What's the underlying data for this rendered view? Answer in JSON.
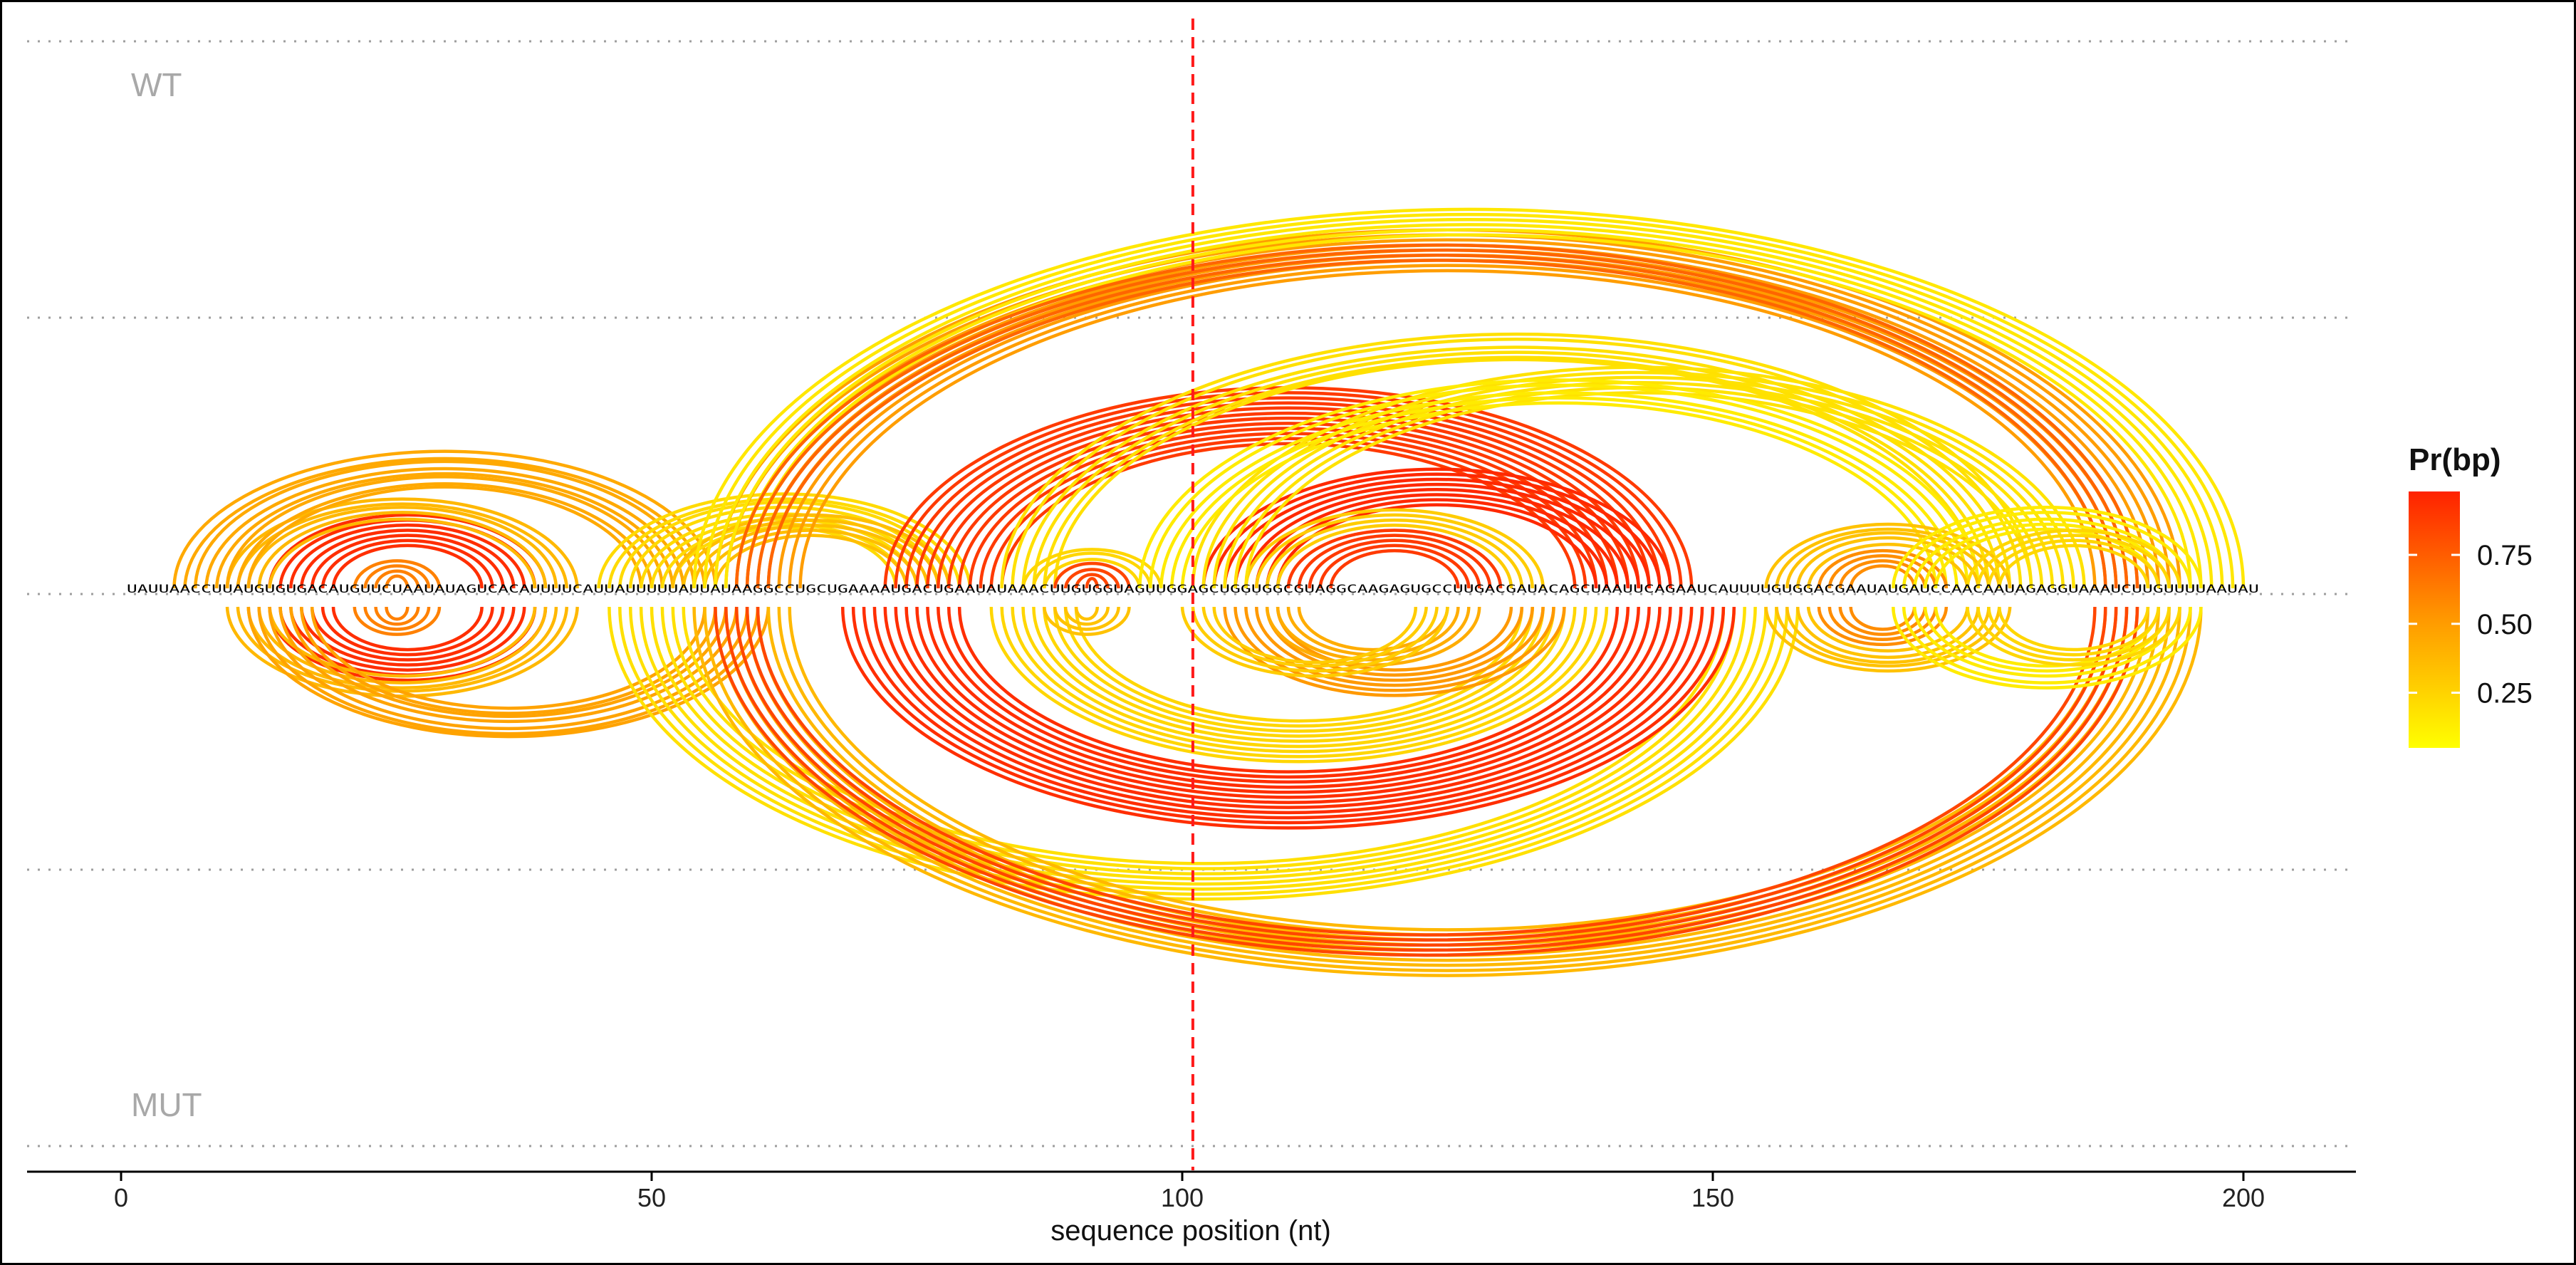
{
  "chart_data": {
    "type": "arc",
    "xlabel": "sequence position (nt)",
    "xlim": [
      -9,
      211
    ],
    "xticks": [
      0,
      50,
      100,
      150,
      200
    ],
    "tracks": [
      "WT",
      "MUT"
    ],
    "mutation_position": 101,
    "sequence": "UAUUAACCUUAUGUGUGACAUGUUCUAAUAUAGUCACAUUUUCAUUAUUUUUAUUAUAAGGCCUGCUGAAAAUGACUGAAUAUAAACUUGUGGUAGUUGGAGCUGGUGGCGUAGGCAAGAGUGCCUUGACGAUACAGCUAAUUCAGAAUCAUUUUGUGGACGAAUAUGAUCCAACAAUAGAGGUAAAUCUUGUUUUAAUAU",
    "sequence_start": 1,
    "colorbar": {
      "title": "Pr(bp)",
      "ticks": [
        0.25,
        0.5,
        0.75
      ],
      "tick_labels": [
        "0.25",
        "0.50",
        "0.75"
      ],
      "low_color": "#ffff00",
      "mid_color": "#ff9900",
      "high_color": "#ff2200"
    },
    "helices": {
      "WT": [
        {
          "i": 14,
          "j": 40,
          "count": 7,
          "prob": 0.95
        },
        {
          "i": 22,
          "j": 30,
          "count": 4,
          "prob": 0.6
        },
        {
          "i": 10,
          "j": 43,
          "count": 5,
          "prob": 0.35
        },
        {
          "i": 5,
          "j": 56,
          "count": 8,
          "prob": 0.42
        },
        {
          "i": 45,
          "j": 80,
          "count": 8,
          "prob": 0.18
        },
        {
          "i": 52,
          "j": 78,
          "count": 5,
          "prob": 0.32
        },
        {
          "i": 56,
          "j": 194,
          "count": 9,
          "prob": 0.48
        },
        {
          "i": 54,
          "j": 200,
          "count": 6,
          "prob": 0.12
        },
        {
          "i": 58,
          "j": 190,
          "count": 4,
          "prob": 0.72
        },
        {
          "i": 72,
          "j": 148,
          "count": 12,
          "prob": 0.9
        },
        {
          "i": 83,
          "j": 180,
          "count": 6,
          "prob": 0.15
        },
        {
          "i": 88,
          "j": 95,
          "count": 4,
          "prob": 0.85
        },
        {
          "i": 85,
          "j": 98,
          "count": 3,
          "prob": 0.2
        },
        {
          "i": 102,
          "j": 146,
          "count": 8,
          "prob": 0.97
        },
        {
          "i": 110,
          "j": 130,
          "count": 5,
          "prob": 0.9
        },
        {
          "i": 106,
          "j": 134,
          "count": 4,
          "prob": 0.25
        },
        {
          "i": 101,
          "j": 185,
          "count": 6,
          "prob": 0.14
        },
        {
          "i": 96,
          "j": 175,
          "count": 5,
          "prob": 0.1
        },
        {
          "i": 155,
          "j": 178,
          "count": 5,
          "prob": 0.3
        },
        {
          "i": 160,
          "j": 172,
          "count": 4,
          "prob": 0.55
        },
        {
          "i": 167,
          "j": 196,
          "count": 5,
          "prob": 0.1
        },
        {
          "i": 174,
          "j": 194,
          "count": 4,
          "prob": 0.2
        }
      ],
      "MUT": [
        {
          "i": 14,
          "j": 40,
          "count": 7,
          "prob": 0.95
        },
        {
          "i": 22,
          "j": 30,
          "count": 4,
          "prob": 0.6
        },
        {
          "i": 10,
          "j": 43,
          "count": 5,
          "prob": 0.35
        },
        {
          "i": 12,
          "j": 61,
          "count": 7,
          "prob": 0.45
        },
        {
          "i": 46,
          "j": 158,
          "count": 8,
          "prob": 0.15
        },
        {
          "i": 54,
          "j": 196,
          "count": 10,
          "prob": 0.35
        },
        {
          "i": 56,
          "j": 190,
          "count": 5,
          "prob": 0.85
        },
        {
          "i": 68,
          "j": 152,
          "count": 12,
          "prob": 0.95
        },
        {
          "i": 82,
          "j": 140,
          "count": 9,
          "prob": 0.2
        },
        {
          "i": 87,
          "j": 95,
          "count": 4,
          "prob": 0.3
        },
        {
          "i": 104,
          "j": 136,
          "count": 6,
          "prob": 0.5
        },
        {
          "i": 108,
          "j": 128,
          "count": 4,
          "prob": 0.4
        },
        {
          "i": 100,
          "j": 125,
          "count": 4,
          "prob": 0.25
        },
        {
          "i": 155,
          "j": 178,
          "count": 5,
          "prob": 0.3
        },
        {
          "i": 160,
          "j": 172,
          "count": 4,
          "prob": 0.55
        },
        {
          "i": 167,
          "j": 196,
          "count": 5,
          "prob": 0.1
        },
        {
          "i": 174,
          "j": 194,
          "count": 4,
          "prob": 0.2
        }
      ]
    }
  }
}
